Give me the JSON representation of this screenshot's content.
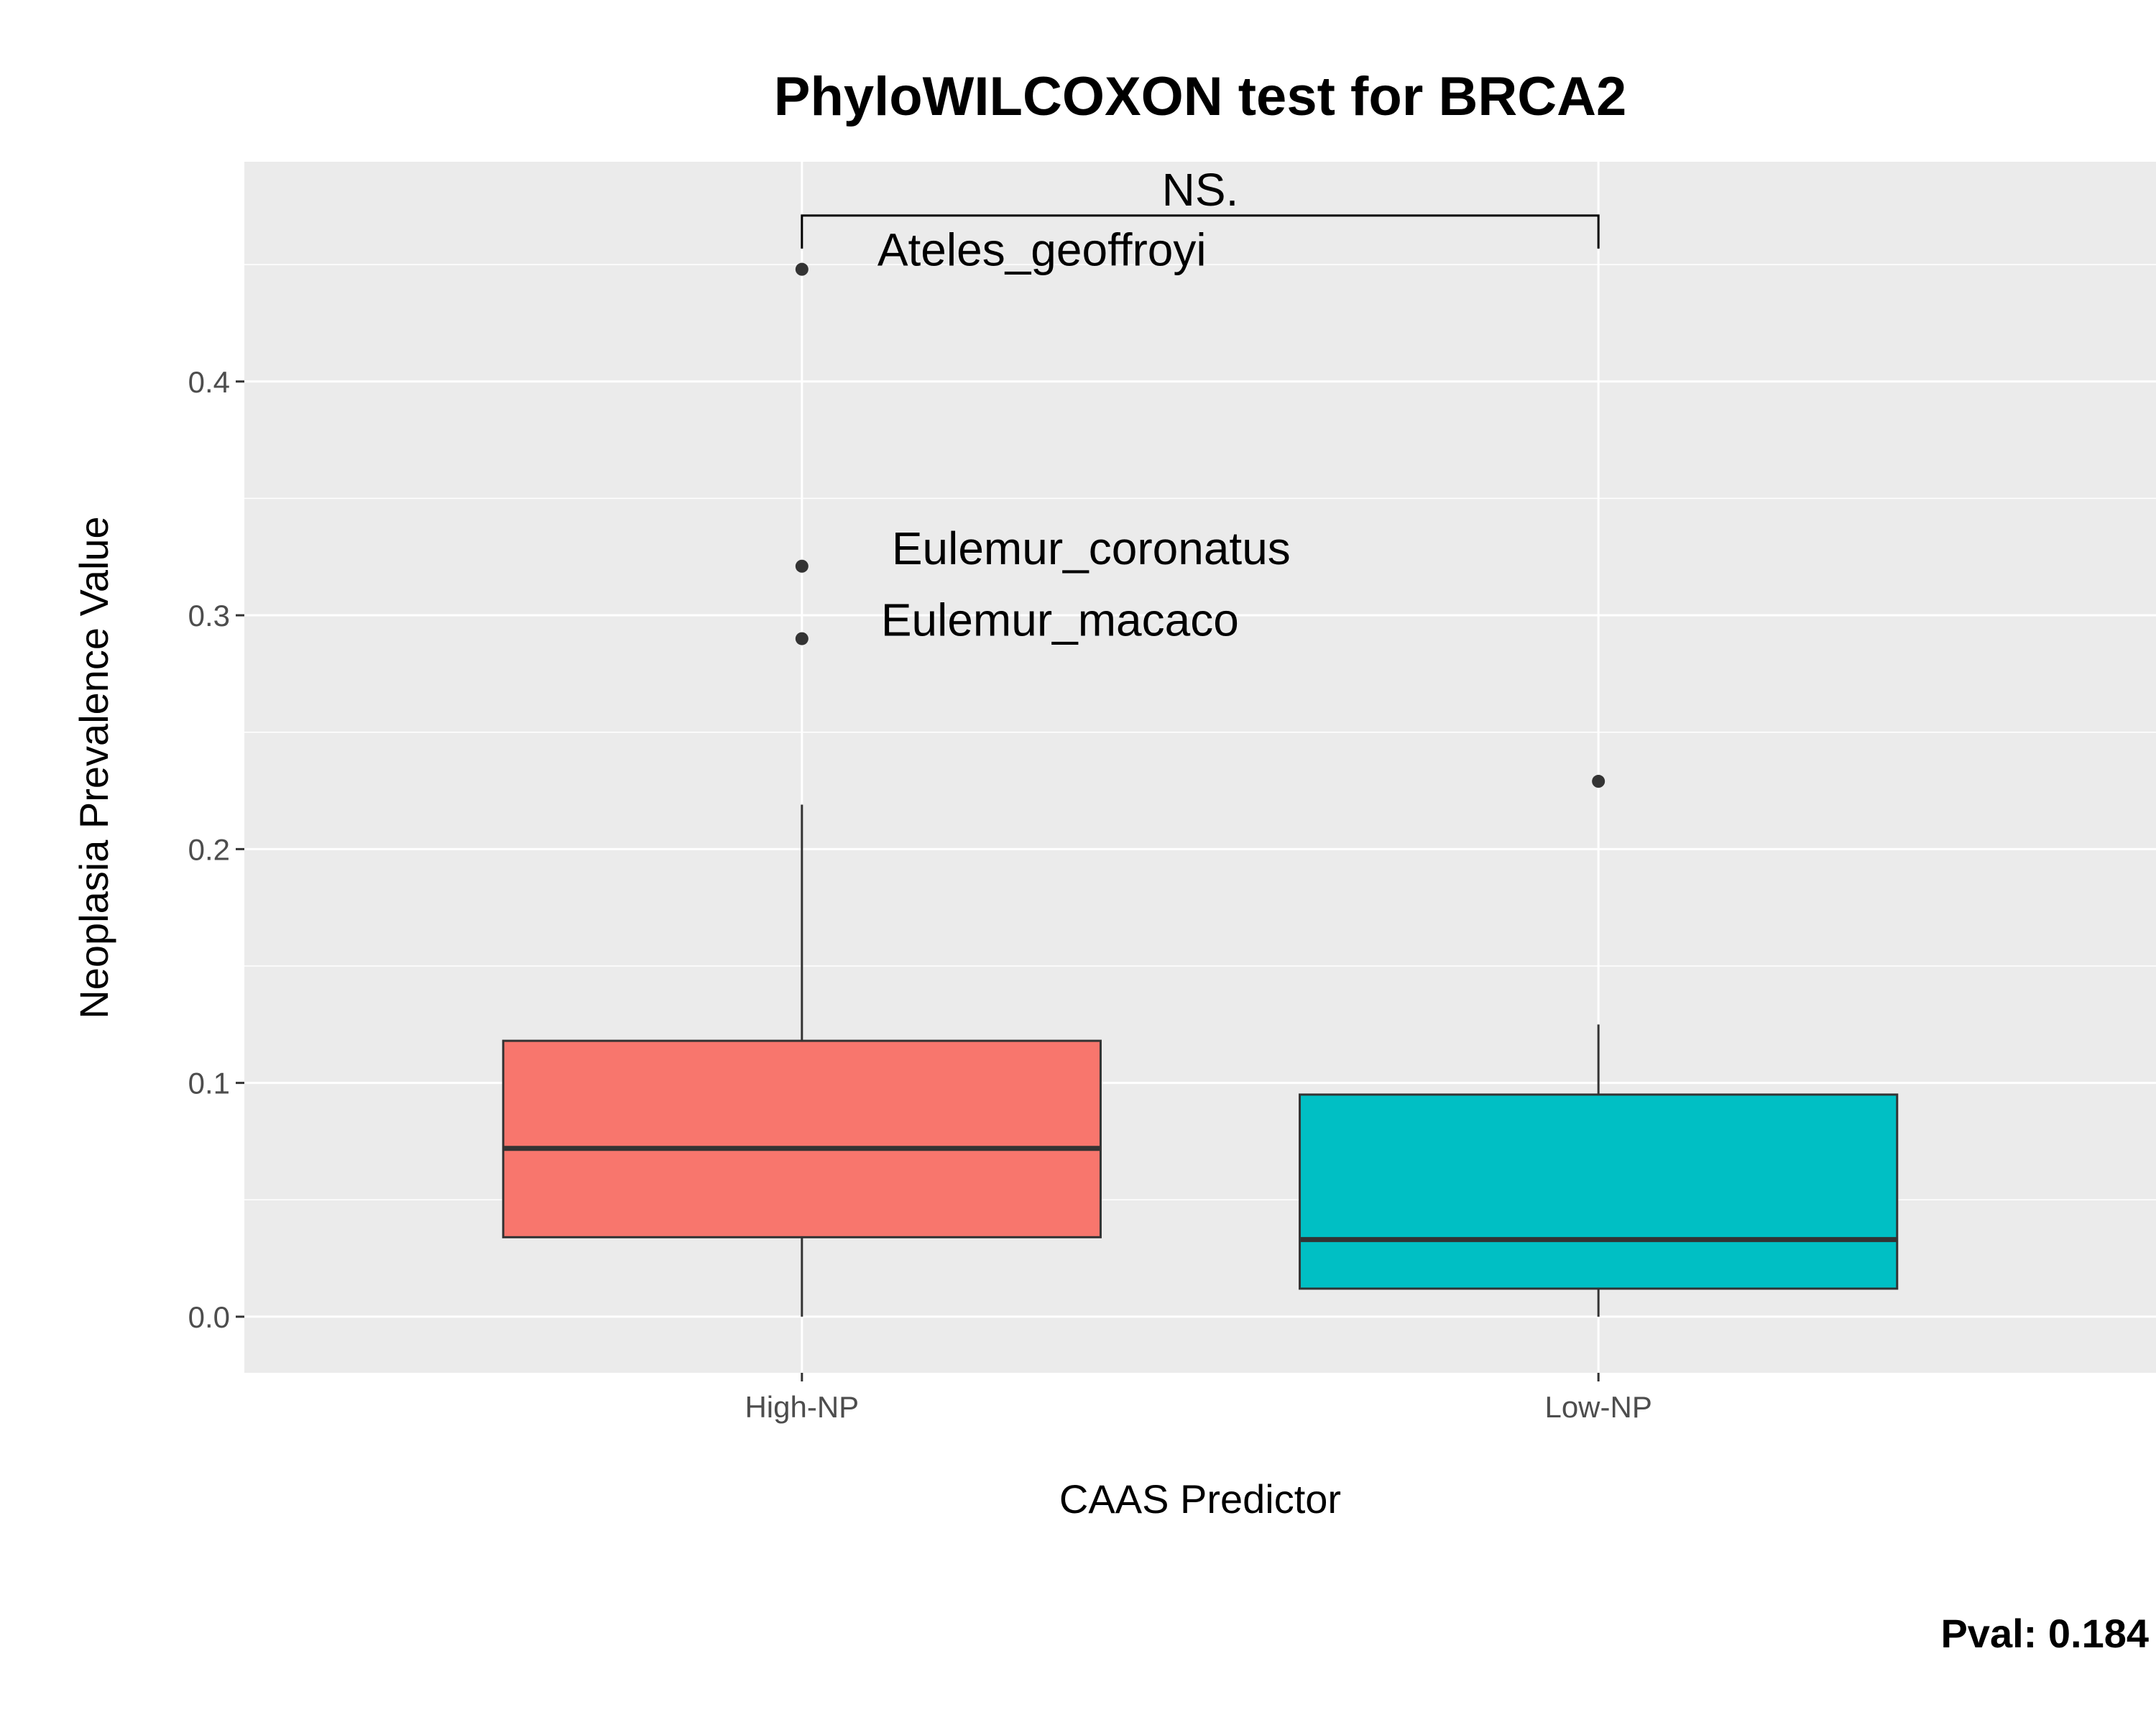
{
  "chart_data": {
    "type": "box",
    "title": "PhyloWILCOXON test for BRCA2",
    "xlabel": "CAAS Predictor",
    "ylabel": "Neoplasia Prevalence Value",
    "ylim": [
      -0.024,
      0.494
    ],
    "y_ticks": [
      0.0,
      0.1,
      0.2,
      0.3,
      0.4
    ],
    "y_tick_labels": [
      "0.0",
      "0.1",
      "0.2",
      "0.3",
      "0.4"
    ],
    "grid": true,
    "categories": [
      "High-NP",
      "Low-NP"
    ],
    "boxes": [
      {
        "category": "High-NP",
        "color": "#F8766D",
        "lower_whisker": 0.0,
        "q1": 0.034,
        "median": 0.072,
        "q3": 0.118,
        "upper_whisker": 0.219,
        "outliers": [
          0.448,
          0.321,
          0.29
        ]
      },
      {
        "category": "Low-NP",
        "color": "#00BFC4",
        "lower_whisker": 0.0,
        "q1": 0.012,
        "median": 0.033,
        "q3": 0.095,
        "upper_whisker": 0.125,
        "outliers": [
          0.229
        ]
      }
    ],
    "point_labels": [
      {
        "text": "Ateles_geoffroyi",
        "category": "High-NP",
        "value": 0.448
      },
      {
        "text": "Eulemur_coronatus",
        "category": "High-NP",
        "value": 0.321
      },
      {
        "text": "Eulemur_macaco",
        "category": "High-NP",
        "value": 0.29
      }
    ],
    "significance": {
      "label": "NS.",
      "from": "High-NP",
      "to": "Low-NP",
      "y": 0.471
    },
    "pval_text": "Pval:  0.184"
  }
}
